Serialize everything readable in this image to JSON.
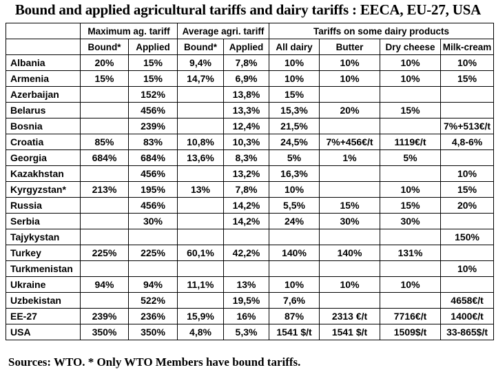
{
  "title": "Bound and applied agricultural tariffs and dairy tariffs : EECA, EU-27, USA",
  "groups": {
    "max": "Maximum ag. tariff",
    "avg": "Average agri. tariff",
    "dairy": "Tariffs on some dairy products"
  },
  "headers": [
    "Bound*",
    "Applied",
    "Bound*",
    "Applied",
    "All dairy",
    "Butter",
    "Dry cheese",
    "Milk-cream"
  ],
  "rows": [
    {
      "country": "Albania",
      "cells": [
        "20%",
        "15%",
        "9,4%",
        "7,8%",
        "10%",
        "10%",
        "10%",
        "10%"
      ]
    },
    {
      "country": "Armenia",
      "cells": [
        "15%",
        "15%",
        "14,7%",
        "6,9%",
        "10%",
        "10%",
        "10%",
        "15%"
      ]
    },
    {
      "country": "Azerbaijan",
      "cells": [
        "",
        "152%",
        "",
        "13,8%",
        "15%",
        "",
        "",
        ""
      ]
    },
    {
      "country": "Belarus",
      "cells": [
        "",
        "456%",
        "",
        "13,3%",
        "15,3%",
        "20%",
        "15%",
        ""
      ]
    },
    {
      "country": "Bosnia",
      "cells": [
        "",
        "239%",
        "",
        "12,4%",
        "21,5%",
        "",
        "",
        "7%+513€/t"
      ]
    },
    {
      "country": "Croatia",
      "cells": [
        "85%",
        "83%",
        "10,8%",
        "10,3%",
        "24,5%",
        "7%+456€/t",
        "1119€/t",
        "4,8-6%"
      ]
    },
    {
      "country": "Georgia",
      "cells": [
        "684%",
        "684%",
        "13,6%",
        "8,3%",
        "5%",
        "1%",
        "5%",
        ""
      ]
    },
    {
      "country": "Kazakhstan",
      "cells": [
        "",
        "456%",
        "",
        "13,2%",
        "16,3%",
        "",
        "",
        "10%"
      ]
    },
    {
      "country": "Kyrgyzstan*",
      "cells": [
        "213%",
        "195%",
        "13%",
        "7,8%",
        "10%",
        "",
        "10%",
        "15%"
      ]
    },
    {
      "country": "Russia",
      "cells": [
        "",
        "456%",
        "",
        "14,2%",
        "5,5%",
        "15%",
        "15%",
        "20%"
      ]
    },
    {
      "country": "Serbia",
      "cells": [
        "",
        "30%",
        "",
        "14,2%",
        "24%",
        "30%",
        "30%",
        ""
      ]
    },
    {
      "country": "Tajykystan",
      "cells": [
        "",
        "",
        "",
        "",
        "",
        "",
        "",
        "150%"
      ]
    },
    {
      "country": "Turkey",
      "cells": [
        "225%",
        "225%",
        "60,1%",
        "42,2%",
        "140%",
        "140%",
        "131%",
        ""
      ]
    },
    {
      "country": "Turkmenistan",
      "cells": [
        "",
        "",
        "",
        "",
        "",
        "",
        "",
        "10%"
      ]
    },
    {
      "country": "Ukraine",
      "cells": [
        "94%",
        "94%",
        "11,1%",
        "13%",
        "10%",
        "10%",
        "10%",
        ""
      ]
    },
    {
      "country": "Uzbekistan",
      "cells": [
        "",
        "522%",
        "",
        "19,5%",
        "7,6%",
        "",
        "",
        "4658€/t"
      ]
    },
    {
      "country": "EE-27",
      "cells": [
        "239%",
        "236%",
        "15,9%",
        "16%",
        "87%",
        "2313 €/t",
        "7716€/t",
        "1400€/t"
      ]
    },
    {
      "country": "USA",
      "cells": [
        "350%",
        "350%",
        "4,8%",
        "5,3%",
        "1541 $/t",
        "1541 $/t",
        "1509$/t",
        "33-865$/t"
      ]
    }
  ],
  "footer": "Sources: WTO. * Only WTO Members have bound tariffs."
}
